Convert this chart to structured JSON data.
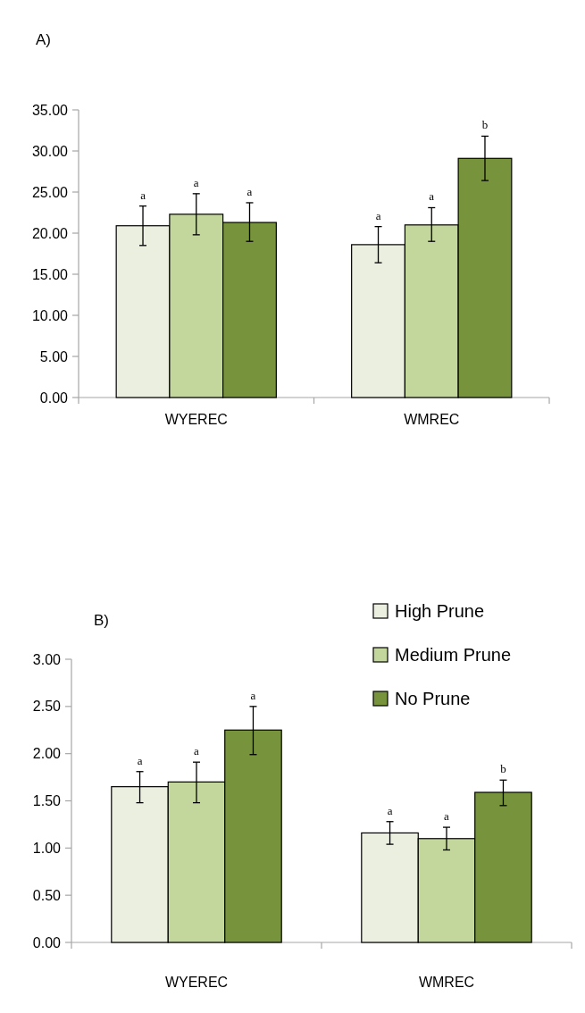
{
  "chart_data": [
    {
      "type": "bar",
      "title": "A)",
      "categories": [
        "WYEREC",
        "WMREC"
      ],
      "ylim": [
        0,
        35
      ],
      "yticks": [
        {
          "value": 0,
          "label": "0.00"
        },
        {
          "value": 5,
          "label": "5.00"
        },
        {
          "value": 10,
          "label": "10.00"
        },
        {
          "value": 15,
          "label": "15.00"
        },
        {
          "value": 20,
          "label": "20.00"
        },
        {
          "value": 25,
          "label": "25.00"
        },
        {
          "value": 30,
          "label": "30.00"
        },
        {
          "value": 35,
          "label": "35.00"
        }
      ],
      "grid": false,
      "legend": false,
      "series": [
        {
          "color": "#ebefdf",
          "values": [
            20.9,
            18.6
          ],
          "errors": [
            [
              18.5,
              23.3
            ],
            [
              16.4,
              20.8
            ]
          ],
          "value_labels": [
            "a",
            "a"
          ]
        },
        {
          "color": "#c3d79c",
          "values": [
            22.3,
            21.0
          ],
          "errors": [
            [
              19.8,
              24.8
            ],
            [
              19.0,
              23.1
            ]
          ],
          "value_labels": [
            "a",
            "a"
          ]
        },
        {
          "color": "#77933c",
          "values": [
            21.3,
            29.1
          ],
          "errors": [
            [
              19.0,
              23.7
            ],
            [
              26.4,
              31.8
            ]
          ],
          "value_labels": [
            "a",
            "b"
          ]
        }
      ]
    },
    {
      "type": "bar",
      "title": "B)",
      "categories": [
        "WYEREC",
        "WMREC"
      ],
      "ylim": [
        0,
        3
      ],
      "yticks": [
        {
          "value": 0,
          "label": "0.00"
        },
        {
          "value": 0.5,
          "label": "0.50"
        },
        {
          "value": 1,
          "label": "1.00"
        },
        {
          "value": 1.5,
          "label": "1.50"
        },
        {
          "value": 2,
          "label": "2.00"
        },
        {
          "value": 2.5,
          "label": "2.50"
        },
        {
          "value": 3,
          "label": "3.00"
        }
      ],
      "grid": false,
      "legend": "top right",
      "series": [
        {
          "name": "High Prune",
          "color": "#ebefdf",
          "values": [
            1.65,
            1.16
          ],
          "errors": [
            [
              1.48,
              1.81
            ],
            [
              1.04,
              1.28
            ]
          ],
          "value_labels": [
            "a",
            "a"
          ]
        },
        {
          "name": "Medium Prune",
          "color": "#c3d79c",
          "values": [
            1.7,
            1.1
          ],
          "errors": [
            [
              1.48,
              1.91
            ],
            [
              0.98,
              1.22
            ]
          ],
          "value_labels": [
            "a",
            "a"
          ]
        },
        {
          "name": "No Prune",
          "color": "#77933c",
          "values": [
            2.25,
            1.59
          ],
          "errors": [
            [
              1.99,
              2.5
            ],
            [
              1.45,
              1.72
            ]
          ],
          "value_labels": [
            "a",
            "b"
          ]
        }
      ]
    }
  ]
}
